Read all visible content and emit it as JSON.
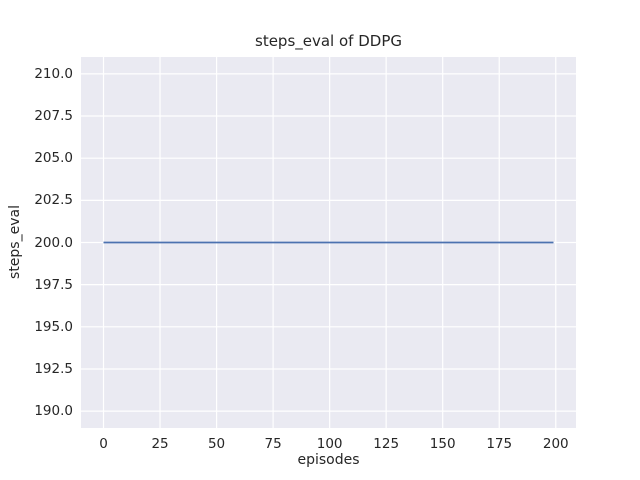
{
  "chart_data": {
    "type": "line",
    "title": "steps_eval of DDPG",
    "xlabel": "episodes",
    "ylabel": "steps_eval",
    "xlim": [
      -9.95,
      208.95
    ],
    "ylim": [
      189,
      211
    ],
    "xticks": [
      0,
      25,
      50,
      75,
      100,
      125,
      150,
      175,
      200
    ],
    "xtick_labels": [
      "0",
      "25",
      "50",
      "75",
      "100",
      "125",
      "150",
      "175",
      "200"
    ],
    "yticks": [
      190,
      192.5,
      195,
      197.5,
      200,
      202.5,
      205,
      207.5,
      210
    ],
    "ytick_labels": [
      "190.0",
      "192.5",
      "195.0",
      "197.5",
      "200.0",
      "202.5",
      "205.0",
      "207.5",
      "210.0"
    ],
    "grid": true,
    "legend": null,
    "series": [
      {
        "name": "steps_eval",
        "color": "#4c72b0",
        "line_width": 1.8,
        "x": [
          0,
          199
        ],
        "y": [
          200,
          200
        ]
      }
    ],
    "style": {
      "axes_background": "#eaeaf2",
      "grid_color": "#ffffff",
      "grid_width": 1.2,
      "text_color": "#262626",
      "figure_background": "#ffffff"
    }
  }
}
